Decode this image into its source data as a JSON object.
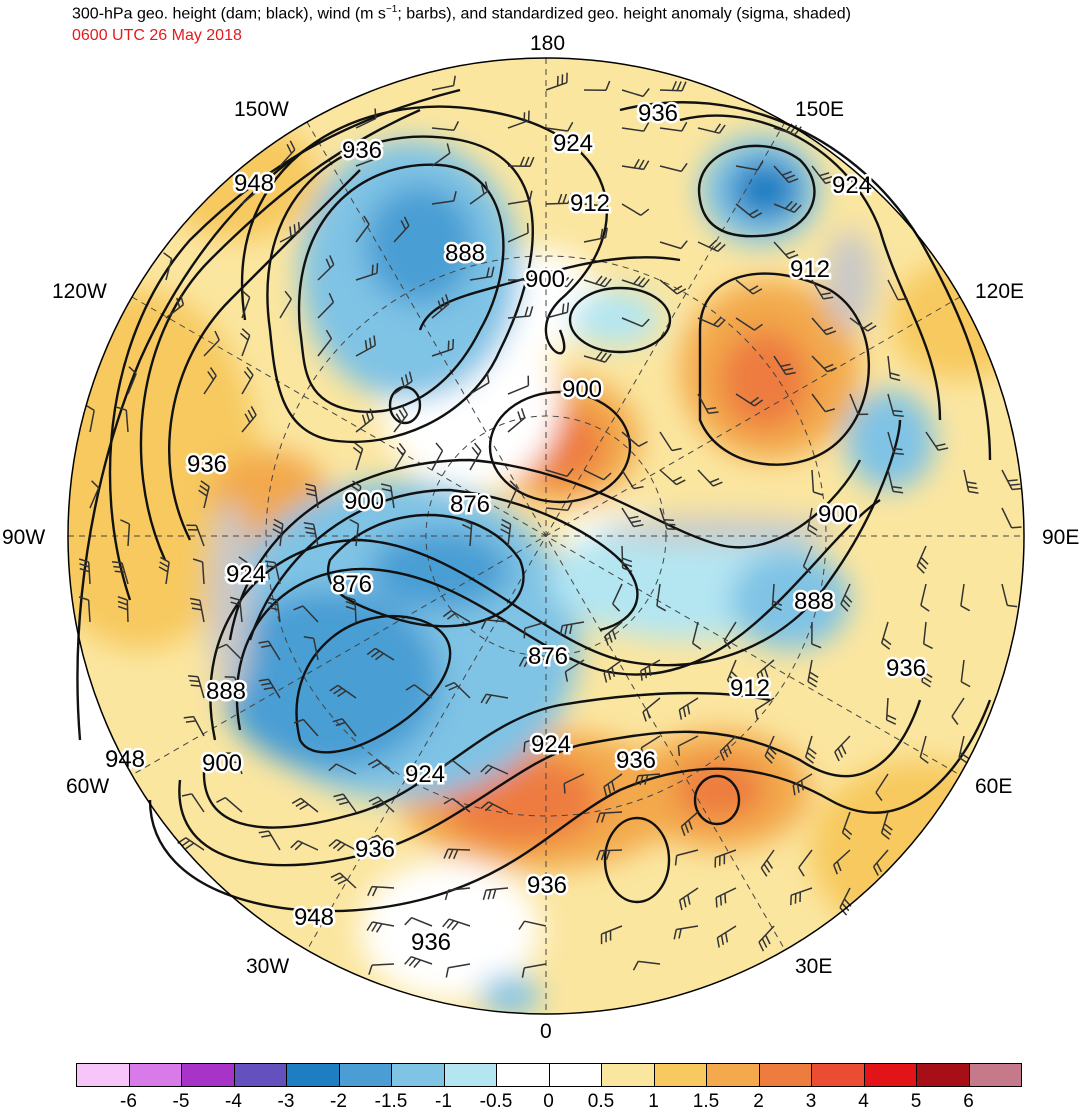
{
  "title": {
    "line1_prefix": "300-hPa geo. height (dam; black), wind (m s",
    "line1_sup": "−1",
    "line1_suffix": "; barbs), and standardized geo. height anomaly (sigma, shaded)",
    "line2": "0600 UTC 26 May 2018"
  },
  "map": {
    "projection": "north polar stereographic",
    "longitude_labels": {
      "top": "180",
      "bottom": "0",
      "left": "90W",
      "right": "90E",
      "upper_left_1": "150W",
      "upper_left_2": "120W",
      "upper_right_1": "150E",
      "upper_right_2": "120E",
      "lower_left_1": "60W",
      "lower_left_2": "30W",
      "lower_right_1": "60E",
      "lower_right_2": "30E"
    },
    "contour_labels": [
      {
        "text": "936"
      },
      {
        "text": "924"
      },
      {
        "text": "936"
      },
      {
        "text": "948"
      },
      {
        "text": "912"
      },
      {
        "text": "924"
      },
      {
        "text": "888"
      },
      {
        "text": "900"
      },
      {
        "text": "912"
      },
      {
        "text": "900"
      },
      {
        "text": "936"
      },
      {
        "text": "900"
      },
      {
        "text": "876"
      },
      {
        "text": "900"
      },
      {
        "text": "924"
      },
      {
        "text": "876"
      },
      {
        "text": "888"
      },
      {
        "text": "876"
      },
      {
        "text": "912"
      },
      {
        "text": "936"
      },
      {
        "text": "888"
      },
      {
        "text": "948"
      },
      {
        "text": "900"
      },
      {
        "text": "924"
      },
      {
        "text": "924"
      },
      {
        "text": "936"
      },
      {
        "text": "936"
      },
      {
        "text": "936"
      },
      {
        "text": "948"
      },
      {
        "text": "936"
      }
    ]
  },
  "colorbar": {
    "colors": [
      "#f7c5f7",
      "#d87ae8",
      "#a733c9",
      "#6551bd",
      "#1e7ec2",
      "#4a9ed4",
      "#7fc3e5",
      "#b4e6f2",
      "#ffffff",
      "#ffffff",
      "#fbe6a0",
      "#f7c95f",
      "#f3a94c",
      "#ee7c3f",
      "#ea4d31",
      "#e21418",
      "#a50f15",
      "#c47a8a"
    ],
    "ticks": [
      "-6",
      "-5",
      "-4",
      "-3",
      "-2",
      "-1.5",
      "-1",
      "-0.5",
      "0",
      "0.5",
      "1",
      "1.5",
      "2",
      "3",
      "4",
      "5",
      "6"
    ]
  }
}
